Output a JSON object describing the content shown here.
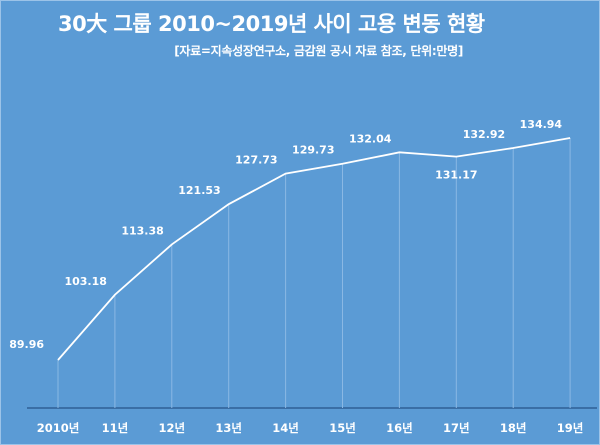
{
  "chart_data": {
    "type": "line",
    "title": "30大 그룹 2010~2019년 사이 고용 변동 현황",
    "subtitle": "[자료=지속성장연구소, 금감원 공시 자료 참조, 단위:만명]",
    "categories": [
      "2010년",
      "11년",
      "12년",
      "13년",
      "14년",
      "15년",
      "16년",
      "17년",
      "18년",
      "19년"
    ],
    "values": [
      89.96,
      103.18,
      113.38,
      121.53,
      127.73,
      129.73,
      132.04,
      131.17,
      132.92,
      134.94
    ],
    "value_labels": [
      "89.96",
      "103.18",
      "113.38",
      "121.53",
      "127.73",
      "129.73",
      "132.04",
      "131.17",
      "132.92",
      "134.94"
    ],
    "highlight_index": 7,
    "colors": {
      "background": "#5b9bd5",
      "line": "#ffffff",
      "highlight_label": "#c00000",
      "axis": "#2f5f95"
    },
    "grid": false,
    "legend": "none"
  }
}
